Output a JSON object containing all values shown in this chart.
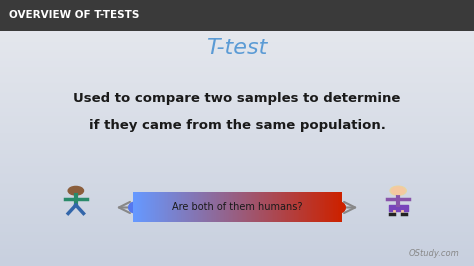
{
  "title": "T-test",
  "title_color": "#5b9bd5",
  "header_text": "OVERVIEW OF T-TESTS",
  "header_bg": "#4a4a4a",
  "header_text_color": "#ffffff",
  "body_text_line1": "Used to compare two samples to determine",
  "body_text_line2": "if they came from the same population.",
  "body_text_color": "#1a1a1a",
  "arrow_label": "Are both of them humans?",
  "arrow_label_color": "#1a1a1a",
  "bg_color_top": "#d0d8e8",
  "bg_color_bottom": "#e8eaf0",
  "watermark": "OStudy.com",
  "watermark_color": "#888888"
}
